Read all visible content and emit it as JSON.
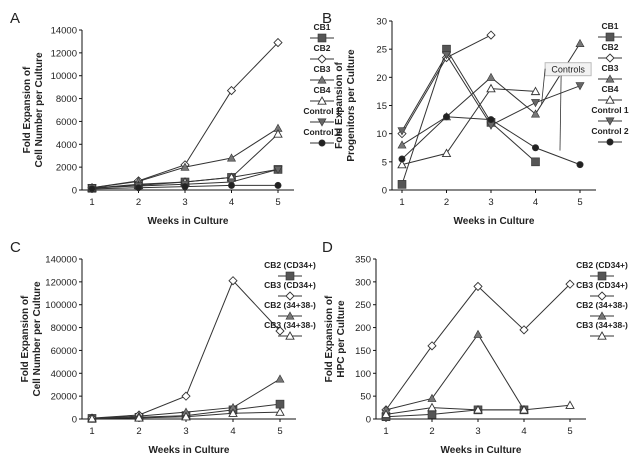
{
  "colors": {
    "line": "#333333",
    "marker_dark": "#555555",
    "axis": "#111111",
    "annotation_box": "#bbbbbb"
  },
  "chart_data": [
    {
      "panel": "A",
      "type": "line",
      "xlabel": "Weeks in Culture",
      "ylabel": [
        "Fold Expansion of",
        "Cell Number per Culture"
      ],
      "x": [
        1,
        2,
        3,
        4,
        5
      ],
      "xticks": [
        "1",
        "2",
        "3",
        "4",
        "5"
      ],
      "yticks": [
        "0",
        "2000",
        "4000",
        "6000",
        "8000",
        "10000",
        "12000",
        "14000"
      ],
      "ylim": [
        0,
        14000
      ],
      "legend_position": "right",
      "series": [
        {
          "name": "CB1",
          "marker": "square-filled",
          "values": [
            150,
            500,
            700,
            1100,
            1800
          ]
        },
        {
          "name": "CB2",
          "marker": "diamond-open",
          "values": [
            200,
            800,
            2200,
            8700,
            12900
          ]
        },
        {
          "name": "CB3",
          "marker": "triangle-up",
          "values": [
            200,
            750,
            2000,
            2800,
            5400
          ]
        },
        {
          "name": "CB4",
          "marker": "triangle-up-open",
          "values": [
            150,
            400,
            700,
            1100,
            4900
          ]
        },
        {
          "name": "Control 1",
          "marker": "triangle-down",
          "values": [
            200,
            350,
            500,
            700,
            1800
          ]
        },
        {
          "name": "Control 2",
          "marker": "circle-filled",
          "values": [
            100,
            200,
            300,
            400,
            400
          ]
        }
      ]
    },
    {
      "panel": "B",
      "type": "line",
      "xlabel": "Weeks in Culture",
      "ylabel": [
        "Fold Expansion of",
        "Progenitors per Culture"
      ],
      "x": [
        1,
        2,
        3,
        4,
        5
      ],
      "xticks": [
        "1",
        "2",
        "3",
        "4",
        "5"
      ],
      "yticks": [
        "0",
        "5",
        "10",
        "15",
        "20",
        "25",
        "30"
      ],
      "ylim": [
        0,
        30
      ],
      "legend_position": "right",
      "annotation": "Controls",
      "series": [
        {
          "name": "CB1",
          "marker": "square-filled",
          "values": [
            1,
            25,
            12,
            5,
            null
          ]
        },
        {
          "name": "CB2",
          "marker": "diamond-open",
          "values": [
            10,
            23.5,
            27.5,
            null,
            null
          ]
        },
        {
          "name": "CB3",
          "marker": "triangle-up",
          "values": [
            8,
            13,
            20,
            13.5,
            26
          ]
        },
        {
          "name": "CB4",
          "marker": "triangle-up-open",
          "values": [
            4.5,
            6.5,
            18,
            17.5,
            null
          ]
        },
        {
          "name": "Control 1",
          "marker": "triangle-down",
          "values": [
            10.5,
            24,
            11.5,
            15.5,
            18.5
          ]
        },
        {
          "name": "Control 2",
          "marker": "circle-filled",
          "values": [
            5.5,
            13,
            12.5,
            7.5,
            4.5
          ]
        }
      ]
    },
    {
      "panel": "C",
      "type": "line",
      "xlabel": "Weeks in Culture",
      "ylabel": [
        "Fold Expansion of",
        "Cell Number per Culture"
      ],
      "x": [
        1,
        2,
        3,
        4,
        5
      ],
      "xticks": [
        "1",
        "2",
        "3",
        "4",
        "5"
      ],
      "yticks": [
        "0",
        "20000",
        "40000",
        "60000",
        "80000",
        "100000",
        "120000",
        "140000"
      ],
      "ylim": [
        0,
        140000
      ],
      "legend_position": "right",
      "series": [
        {
          "name": "CB2 (CD34+)",
          "marker": "square-filled",
          "values": [
            500,
            1500,
            3000,
            8000,
            13000
          ]
        },
        {
          "name": "CB3 (CD34+)",
          "marker": "diamond-open",
          "values": [
            800,
            3500,
            20000,
            121000,
            77000
          ]
        },
        {
          "name": "CB2 (34+38-)",
          "marker": "triangle-up",
          "values": [
            600,
            2500,
            6000,
            10000,
            35000
          ]
        },
        {
          "name": "CB3 (34+38-)",
          "marker": "triangle-up-open",
          "values": [
            300,
            1000,
            2000,
            5000,
            6000
          ]
        }
      ]
    },
    {
      "panel": "D",
      "type": "line",
      "xlabel": "Weeks in Culture",
      "ylabel": [
        "Fold Expansion of",
        "HPC per Culture"
      ],
      "x": [
        1,
        2,
        3,
        4,
        5
      ],
      "xticks": [
        "1",
        "2",
        "3",
        "4",
        "5"
      ],
      "yticks": [
        "0",
        "50",
        "100",
        "150",
        "200",
        "250",
        "300",
        "350"
      ],
      "ylim": [
        0,
        350
      ],
      "legend_position": "right",
      "series": [
        {
          "name": "CB2 (CD34+)",
          "marker": "square-filled",
          "values": [
            5,
            10,
            20,
            20,
            null
          ]
        },
        {
          "name": "CB3 (CD34+)",
          "marker": "diamond-open",
          "values": [
            20,
            160,
            290,
            195,
            295
          ]
        },
        {
          "name": "CB2 (34+38-)",
          "marker": "triangle-up",
          "values": [
            20,
            45,
            185,
            20,
            null
          ]
        },
        {
          "name": "CB3 (34+38-)",
          "marker": "triangle-up-open",
          "values": [
            10,
            25,
            20,
            20,
            30
          ]
        }
      ]
    }
  ]
}
